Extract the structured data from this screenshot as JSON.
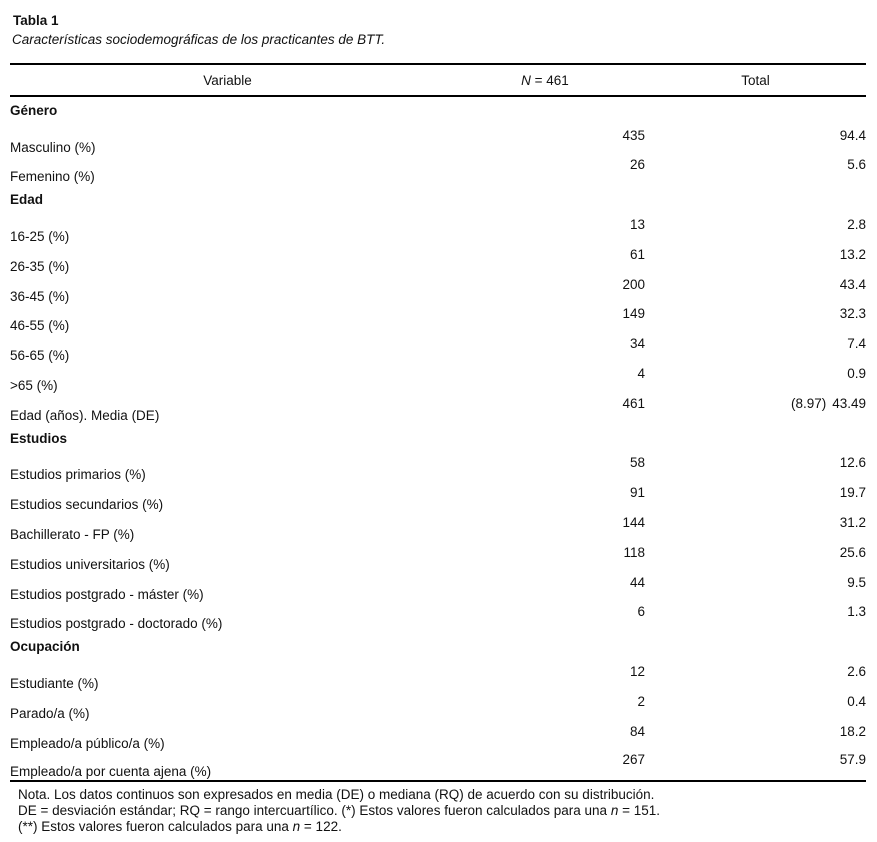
{
  "page": {
    "title": "Tabla 1",
    "subtitle": "Características sociodemográficas de los practicantes de BTT."
  },
  "table": {
    "header": {
      "variable": "Variable",
      "n_italic": "N",
      "n_rest": " = 461",
      "total": "Total"
    },
    "rows": [
      {
        "type": "section",
        "label": "Género"
      },
      {
        "type": "data",
        "label": "Masculino (%)",
        "n": "435",
        "total": "94.4"
      },
      {
        "type": "data",
        "label": "Femenino (%)",
        "n": "26",
        "total": "5.6"
      },
      {
        "type": "section",
        "label": "Edad"
      },
      {
        "type": "data",
        "label": "16-25 (%)",
        "n": "13",
        "total": "2.8"
      },
      {
        "type": "data",
        "label": "26-35 (%)",
        "n": "61",
        "total": "13.2"
      },
      {
        "type": "data",
        "label": "36-45 (%)",
        "n": "200",
        "total": "43.4"
      },
      {
        "type": "data",
        "label": "46-55 (%)",
        "n": "149",
        "total": "32.3"
      },
      {
        "type": "data",
        "label": "56-65 (%)",
        "n": "34",
        "total": "7.4"
      },
      {
        "type": "data",
        "label": ">65 (%)",
        "n": "4",
        "total": "0.9"
      },
      {
        "type": "data",
        "label": "Edad (años). Media (DE)",
        "n": "461",
        "total": "43.49",
        "extra": "(8.97)"
      },
      {
        "type": "section",
        "label": "Estudios"
      },
      {
        "type": "data",
        "label": "Estudios primarios (%)",
        "n": "58",
        "total": "12.6"
      },
      {
        "type": "data",
        "label": "Estudios secundarios (%)",
        "n": "91",
        "total": "19.7"
      },
      {
        "type": "data",
        "label": "Bachillerato - FP (%)",
        "n": "144",
        "total": "31.2"
      },
      {
        "type": "data",
        "label": "Estudios universitarios (%)",
        "n": "118",
        "total": "25.6"
      },
      {
        "type": "data",
        "label": "Estudios postgrado - máster (%)",
        "n": "44",
        "total": "9.5"
      },
      {
        "type": "data",
        "label": "Estudios postgrado - doctorado (%)",
        "n": "6",
        "total": "1.3"
      },
      {
        "type": "section",
        "label": "Ocupación"
      },
      {
        "type": "data",
        "label": "Estudiante (%)",
        "n": "12",
        "total": "2.6"
      },
      {
        "type": "data",
        "label": "Parado/a (%)",
        "n": "2",
        "total": "0.4"
      },
      {
        "type": "data",
        "label": "Empleado/a público/a (%)",
        "n": "84",
        "total": "18.2"
      },
      {
        "type": "data",
        "label": "Empleado/a por cuenta ajena (%)",
        "n": "267",
        "total": "57.9"
      }
    ]
  },
  "notes": [
    {
      "segments": [
        {
          "text": "Nota. Los datos continuos son expresados en media (DE) o mediana (RQ) de acuerdo con su distribución.",
          "italic": false
        }
      ]
    },
    {
      "segments": [
        {
          "text": "DE = desviación estándar; RQ = rango intercuartílico. (*) Estos valores fueron calculados para una ",
          "italic": false
        },
        {
          "text": "n",
          "italic": true
        },
        {
          "text": " = 151.",
          "italic": false
        }
      ]
    },
    {
      "segments": [
        {
          "text": "(**) Estos valores fueron calculados para una ",
          "italic": false
        },
        {
          "text": "n",
          "italic": true
        },
        {
          "text": " = 122.",
          "italic": false
        }
      ]
    }
  ]
}
